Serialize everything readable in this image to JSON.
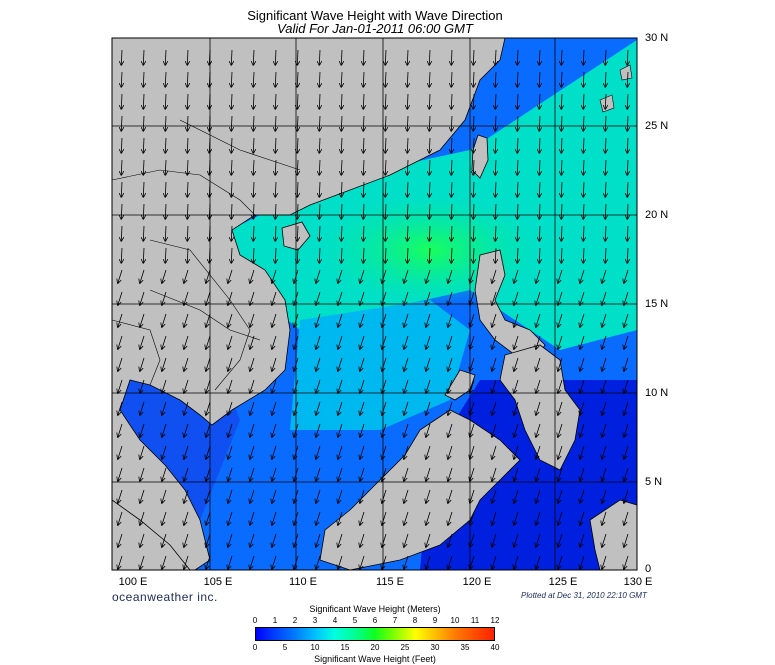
{
  "title": "Significant Wave Height with Wave Direction",
  "subtitle": "Valid For Jan-01-2011 06:00 GMT",
  "lat_labels": [
    "30 N",
    "25 N",
    "20 N",
    "15 N",
    "10 N",
    "5 N",
    "0"
  ],
  "lon_labels": [
    "100 E",
    "105 E",
    "110 E",
    "115 E",
    "120 E",
    "125 E",
    "130 E"
  ],
  "brand": "oceanweather inc.",
  "plotted": "Plotted at Dec 31, 2010 22:10 GMT",
  "colorbar": {
    "title_meters": "Significant Wave Height (Meters)",
    "title_feet": "Significant Wave Height (Feet)",
    "meter_ticks": [
      "0",
      "1",
      "2",
      "3",
      "4",
      "5",
      "6",
      "7",
      "8",
      "9",
      "10",
      "11",
      "12"
    ],
    "feet_ticks": [
      "0",
      "5",
      "10",
      "15",
      "20",
      "25",
      "30",
      "35",
      "40"
    ]
  },
  "colors": {
    "land": "#c0c0c0",
    "low_wave": "#0000ff",
    "mid_wave": "#00ffb0",
    "high_wave": "#ff2000"
  },
  "map_extent": {
    "lon": [
      99,
      130
    ],
    "lat": [
      0,
      30
    ]
  }
}
